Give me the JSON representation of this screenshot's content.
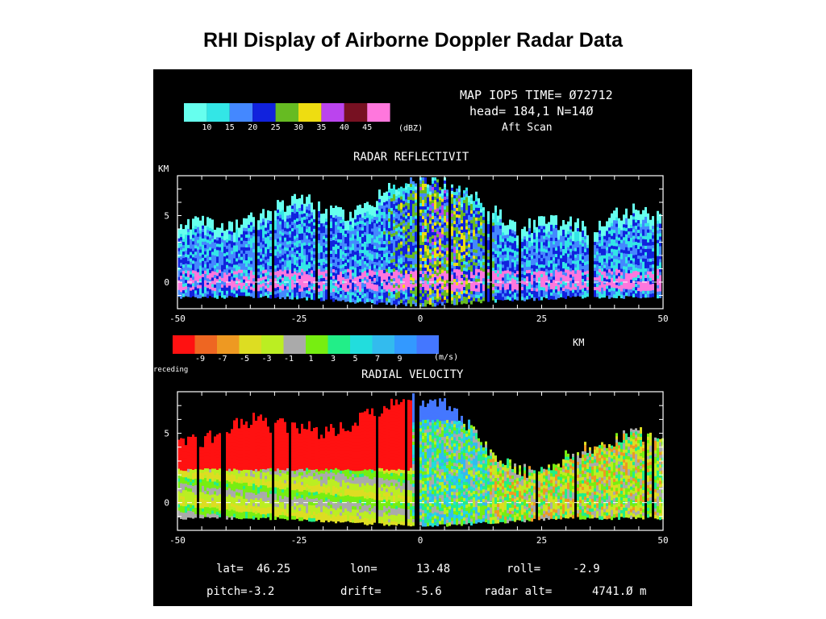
{
  "page": {
    "title": "RHI Display of Airborne Doppler Radar Data"
  },
  "header": {
    "line1": "MAP IOP5 TIME= Ø72712",
    "line2": "head= 184,1  N=14Ø",
    "line3": "Aft Scan"
  },
  "colors": {
    "background": "#000000",
    "axis": "#ffffff",
    "reflectivity_scale": [
      "#66ffee",
      "#33e6e6",
      "#4488ff",
      "#1122dd",
      "#66bb22",
      "#eedd11",
      "#bb44ee",
      "#771122",
      "#ff77dd"
    ],
    "velocity_scale": [
      "#ff1111",
      "#ee6622",
      "#ee9922",
      "#dddd22",
      "#bbee22",
      "#aaaaaa",
      "#77ee11",
      "#22ee88",
      "#22dddd",
      "#33bbee",
      "#3399ff",
      "#4477ff"
    ]
  },
  "chart_data": [
    {
      "type": "heatmap",
      "title": "RADAR REFLECTIVIT",
      "ylabel": "KM",
      "xlabel": "",
      "xlim": [
        -50,
        50
      ],
      "ylim": [
        -2,
        8
      ],
      "x_ticks": [
        "-50",
        "-25",
        "0",
        "25",
        "50"
      ],
      "y_ticks": [
        "5",
        "0"
      ],
      "colorbar": {
        "unit": "(dBZ)",
        "labels": [
          "10",
          "15",
          "20",
          "25",
          "30",
          "35",
          "40",
          "45"
        ]
      },
      "echo_top_profile": {
        "x": [
          -50,
          -45,
          -40,
          -35,
          -30,
          -25,
          -20,
          -15,
          -10,
          -5,
          0,
          5,
          10,
          15,
          20,
          25,
          30,
          35,
          40,
          45,
          50
        ],
        "y": [
          4.5,
          4.5,
          4.0,
          5.0,
          5.5,
          6.5,
          5.5,
          5.0,
          6.0,
          7.5,
          8.0,
          7.5,
          6.5,
          5.5,
          4.0,
          4.5,
          4.5,
          4.0,
          5.0,
          5.5,
          4.5
        ]
      }
    },
    {
      "type": "heatmap",
      "title": "RADIAL VELOCITY",
      "xlabel": "KM",
      "ylabel": "",
      "xlim": [
        -50,
        50
      ],
      "ylim": [
        -2,
        8
      ],
      "x_ticks": [
        "-50",
        "-25",
        "0",
        "25",
        "50"
      ],
      "y_ticks": [
        "5",
        "0"
      ],
      "colorbar": {
        "unit": "(m/s)",
        "side_label": "receding",
        "labels": [
          "-9",
          "-7",
          "-5",
          "-3",
          "-1",
          "1",
          "3",
          "5",
          "7",
          "9"
        ]
      },
      "echo_top_profile": {
        "x": [
          -50,
          -45,
          -40,
          -35,
          -30,
          -25,
          -20,
          -15,
          -10,
          -5,
          0,
          5,
          10,
          15,
          20,
          25,
          30,
          35,
          40,
          45,
          50
        ],
        "y": [
          4.5,
          4.5,
          5.5,
          6.0,
          5.5,
          5.5,
          5.0,
          5.5,
          6.5,
          7.5,
          7.5,
          7.0,
          5.5,
          3.5,
          2.5,
          2.0,
          3.5,
          4.0,
          4.5,
          5.0,
          4.5
        ]
      }
    }
  ],
  "footer": {
    "lat_label": "lat=",
    "lat_value": "46.25",
    "lon_label": "lon=",
    "lon_value": "13.48",
    "roll_label": "roll=",
    "roll_value": "-2.9",
    "pitch_text": "pitch=-3.2",
    "drift_label": "drift=",
    "drift_value": "-5.6",
    "alt_label": "radar alt=",
    "alt_value": "4741.Ø m"
  }
}
